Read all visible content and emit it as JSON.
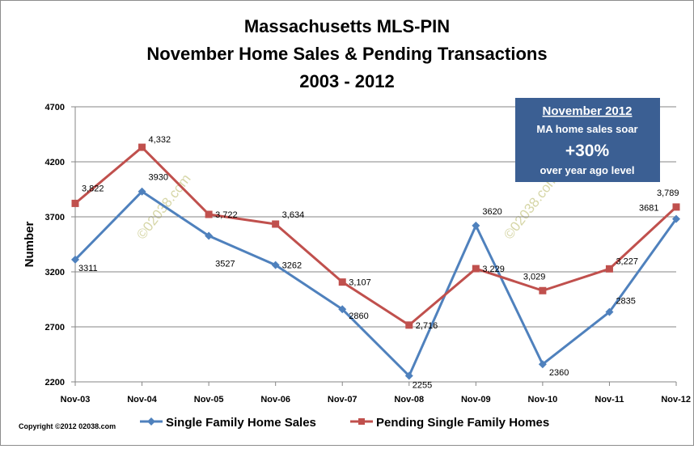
{
  "chart_data": {
    "type": "line",
    "title_lines": [
      "Massachusetts MLS-PIN",
      "November Home Sales & Pending Transactions",
      "2003 - 2012"
    ],
    "ylabel": "Number",
    "xlabel": "",
    "categories": [
      "Nov-03",
      "Nov-04",
      "Nov-05",
      "Nov-06",
      "Nov-07",
      "Nov-08",
      "Nov-09",
      "Nov-10",
      "Nov-11",
      "Nov-12"
    ],
    "ylim": [
      2200,
      4700
    ],
    "yticks": [
      2200,
      2700,
      3200,
      3700,
      4200,
      4700
    ],
    "grid": true,
    "legend_position": "bottom",
    "series": [
      {
        "name": "Single Family Home Sales",
        "color": "#4f81bd",
        "marker": "diamond",
        "values": [
          3311,
          3930,
          3527,
          3262,
          2860,
          2255,
          3620,
          2360,
          2835,
          3681
        ],
        "labels": [
          "3311",
          "3930",
          "3527",
          "3262",
          "2860",
          "2255",
          "3620",
          "2360",
          "2835",
          "3681"
        ]
      },
      {
        "name": "Pending Single Family Homes",
        "color": "#c0504d",
        "marker": "square",
        "values": [
          3822,
          4332,
          3722,
          3634,
          3107,
          2716,
          3229,
          3029,
          3227,
          3789
        ],
        "labels": [
          "3,822",
          "4,332",
          "3,722",
          "3,634",
          "3,107",
          "2,716",
          "3,229",
          "3,029",
          "3,227",
          "3,789"
        ]
      }
    ],
    "annotation": {
      "heading": "November 2012",
      "line1": "MA home sales soar",
      "big": "+30%",
      "line3": "over year ago level",
      "background": "#3b5f93"
    },
    "watermark": "©02038.com",
    "copyright": "Copyright  ©2012 02038.com"
  }
}
